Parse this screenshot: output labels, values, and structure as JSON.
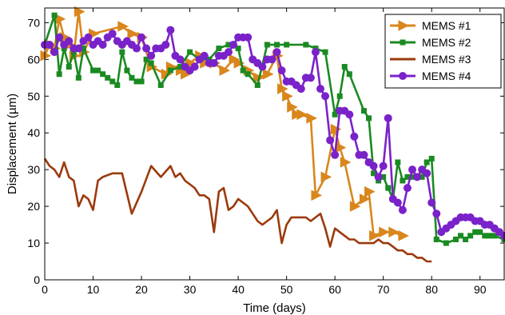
{
  "chart_data": {
    "type": "line",
    "xlabel": "Time (days)",
    "ylabel": "Displacement (µm)",
    "xlim": [
      0,
      95
    ],
    "ylim": [
      0,
      74
    ],
    "xticks": [
      0,
      10,
      20,
      30,
      40,
      50,
      60,
      70,
      80,
      90
    ],
    "yticks": [
      0,
      10,
      20,
      30,
      40,
      50,
      60,
      70
    ],
    "grid": false,
    "legend_position": "top-right",
    "series": [
      {
        "name": "MEMS #1",
        "color": "#d9861c",
        "marker": "triangle-right",
        "x": [
          0,
          1,
          2,
          3,
          4,
          5,
          6,
          7,
          8,
          10,
          16,
          18,
          20,
          22,
          25,
          26,
          28,
          29,
          30,
          32,
          33,
          35,
          37,
          39,
          40,
          42,
          44,
          46,
          48,
          49,
          50,
          51,
          52,
          53,
          55,
          56,
          58,
          60,
          61,
          62,
          64,
          66,
          67,
          68,
          70,
          72,
          74
        ],
        "y": [
          61,
          64,
          63,
          71,
          66,
          64,
          61,
          73,
          62,
          67,
          69,
          67,
          66,
          58,
          56,
          58,
          57,
          56,
          59,
          61,
          59,
          59,
          57,
          60,
          59,
          57,
          55,
          56,
          61,
          52,
          50,
          47,
          45,
          45,
          44,
          23,
          28,
          41,
          36,
          32,
          20,
          22,
          24,
          12,
          13,
          13,
          12
        ]
      },
      {
        "name": "MEMS #2",
        "color": "#1a8a22",
        "marker": "square",
        "x": [
          0,
          2,
          3,
          4,
          5,
          6,
          7,
          8,
          10,
          11,
          12,
          13,
          14,
          15,
          16,
          17,
          18,
          19,
          20,
          21,
          22,
          24,
          26,
          28,
          30,
          32,
          34,
          36,
          38,
          40,
          41,
          42,
          44,
          46,
          48,
          50,
          54,
          56,
          58,
          60,
          61,
          62,
          63,
          66,
          67,
          68,
          69,
          70,
          71,
          72,
          73,
          74,
          75,
          76,
          78,
          79,
          80,
          81,
          83,
          85,
          86,
          87,
          88,
          89,
          90,
          91,
          92,
          93,
          95
        ],
        "y": [
          64,
          72,
          56,
          63,
          58,
          62,
          55,
          63,
          57,
          57,
          56,
          55,
          54,
          53,
          62,
          57,
          55,
          54,
          54,
          60,
          59,
          53,
          57,
          58,
          62,
          60,
          60,
          63,
          64,
          63,
          57,
          56,
          53,
          64,
          64,
          64,
          64,
          63,
          62,
          45,
          50,
          58,
          56,
          46,
          44,
          29,
          27,
          28,
          25,
          22,
          32,
          27,
          28,
          28,
          28,
          32,
          33,
          11,
          10,
          11,
          12,
          11,
          12,
          13,
          13,
          12,
          12,
          12,
          11
        ]
      },
      {
        "name": "MEMS #3",
        "color": "#9b3a0c",
        "marker": "none",
        "x": [
          0,
          1,
          2,
          3,
          4,
          5,
          6,
          7,
          8,
          9,
          10,
          11,
          12,
          14,
          16,
          18,
          20,
          22,
          24,
          26,
          27,
          28,
          29,
          30,
          31,
          32,
          33,
          34,
          35,
          36,
          37,
          38,
          39,
          40,
          41,
          42,
          43,
          44,
          45,
          46,
          47,
          48,
          49,
          50,
          51,
          52,
          53,
          54,
          55,
          56,
          57,
          58,
          59,
          60,
          61,
          62,
          63,
          64,
          65,
          66,
          67,
          68,
          69,
          70,
          71,
          72,
          73,
          74,
          75,
          76,
          77,
          78,
          79,
          80
        ],
        "y": [
          33,
          31,
          30,
          28,
          32,
          28,
          27,
          20,
          23,
          22,
          19,
          27,
          28,
          29,
          29,
          18,
          24,
          31,
          28,
          31,
          28,
          29,
          27,
          26,
          25,
          23,
          23,
          22,
          13,
          24,
          25,
          19,
          20,
          22,
          21,
          20,
          18,
          16,
          15,
          16,
          17,
          19,
          10,
          15,
          17,
          17,
          17,
          17,
          16,
          17,
          18,
          14,
          9,
          14,
          13,
          12,
          11,
          11,
          10,
          10,
          10,
          10,
          11,
          10,
          10,
          9,
          8,
          8,
          7,
          7,
          6,
          6,
          5,
          5
        ]
      },
      {
        "name": "MEMS #4",
        "color": "#7a22c9",
        "marker": "circle",
        "x": [
          0,
          1,
          2,
          3,
          4,
          5,
          6,
          7,
          8,
          9,
          10,
          11,
          12,
          13,
          14,
          15,
          16,
          17,
          18,
          19,
          20,
          21,
          22,
          23,
          24,
          25,
          26,
          27,
          28,
          29,
          30,
          31,
          32,
          33,
          34,
          35,
          36,
          37,
          38,
          39,
          40,
          41,
          42,
          43,
          44,
          45,
          46,
          47,
          48,
          49,
          50,
          51,
          52,
          53,
          54,
          55,
          56,
          57,
          58,
          59,
          60,
          61,
          62,
          63,
          64,
          65,
          66,
          67,
          68,
          69,
          70,
          71,
          72,
          73,
          74,
          75,
          76,
          77,
          78,
          79,
          80,
          81,
          82,
          83,
          84,
          85,
          86,
          87,
          88,
          89,
          90,
          91,
          92,
          93,
          94,
          95
        ],
        "y": [
          64,
          64,
          62,
          66,
          64,
          65,
          63,
          63,
          65,
          66,
          64,
          65,
          64,
          66,
          67,
          65,
          64,
          65,
          64,
          63,
          66,
          63,
          61,
          63,
          63,
          64,
          68,
          61,
          60,
          58,
          57,
          58,
          60,
          61,
          59,
          59,
          61,
          61,
          62,
          64,
          66,
          66,
          66,
          60,
          59,
          58,
          60,
          60,
          62,
          57,
          54,
          54,
          53,
          52,
          55,
          55,
          62,
          52,
          50,
          38,
          34,
          46,
          46,
          45,
          39,
          34,
          34,
          32,
          31,
          28,
          31,
          44,
          22,
          21,
          19,
          25,
          30,
          28,
          30,
          29,
          21,
          18,
          13,
          14,
          15,
          16,
          17,
          17,
          17,
          16,
          16,
          15,
          15,
          14,
          13,
          12
        ]
      }
    ]
  }
}
